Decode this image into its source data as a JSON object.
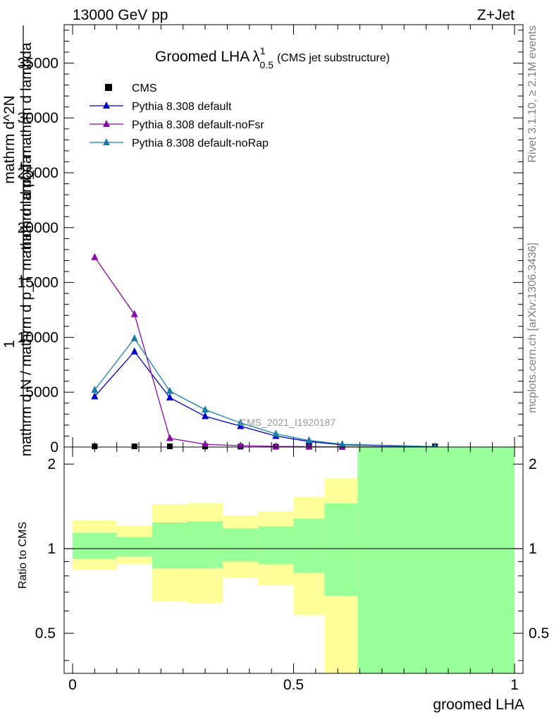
{
  "header": {
    "left": "13000 GeV pp",
    "right": "Z+Jet",
    "watermark": "CMS_2021_I1920187"
  },
  "side_labels": {
    "rivet": "Rivet 3.1.10, ≥ 2.1M events",
    "mcplots": "mcplots.cern.ch [arXiv:1306.3436]"
  },
  "colors": {
    "cms": "#000000",
    "default": "#0000cc",
    "noFsr": "#8a0aaa",
    "noRap": "#1a7fa8",
    "band_yellow": "#ffff99",
    "band_green": "#99ff99"
  },
  "chart_data": [
    {
      "type": "line",
      "title": "Groomed LHA",
      "title_symbol": "λ",
      "title_sup": "1",
      "title_sub": "0.5",
      "title_note": "(CMS jet substructure)",
      "ylabel_lines": [
        "1",
        "mathrm d N / mathrm d p_T mathrm d lambda",
        "mathrm d^2N",
        "mathrm d p_T mathrm d lambda"
      ],
      "xlim": [
        0,
        1
      ],
      "ylim": [
        0,
        38500
      ],
      "yticks": [
        5000,
        10000,
        15000,
        20000,
        25000,
        30000,
        35000
      ],
      "ytick_labels": [
        "5000",
        "10000",
        "15000",
        "20000",
        "25000",
        "30000",
        "35000"
      ],
      "legend": [
        "CMS",
        "Pythia 8.308 default",
        "Pythia 8.308 default-noFsr",
        "Pythia 8.308 default-noRap"
      ],
      "legend_position": "top-left",
      "series": [
        {
          "name": "CMS",
          "marker": "square",
          "x": [
            0.05,
            0.14,
            0.22,
            0.3,
            0.38,
            0.46,
            0.535,
            0.61,
            0.82
          ],
          "y": [
            60,
            60,
            60,
            50,
            40,
            30,
            20,
            10,
            60
          ]
        },
        {
          "name": "Pythia 8.308 default",
          "marker": "triangle",
          "x": [
            0.05,
            0.14,
            0.22,
            0.3,
            0.38,
            0.46,
            0.535,
            0.61,
            0.82
          ],
          "y": [
            4600,
            8700,
            4500,
            2800,
            1900,
            1000,
            500,
            200,
            30
          ]
        },
        {
          "name": "Pythia 8.308 default-noFsr",
          "marker": "triangle",
          "x": [
            0.05,
            0.14,
            0.22,
            0.3,
            0.38,
            0.46,
            0.535,
            0.61,
            0.82
          ],
          "y": [
            17300,
            12100,
            800,
            250,
            120,
            60,
            30,
            15,
            10
          ]
        },
        {
          "name": "Pythia 8.308 default-noRap",
          "marker": "triangle",
          "x": [
            0.05,
            0.14,
            0.22,
            0.3,
            0.38,
            0.46,
            0.535,
            0.61,
            0.82
          ],
          "y": [
            5200,
            9900,
            5100,
            3400,
            2200,
            1200,
            600,
            250,
            40
          ]
        }
      ]
    },
    {
      "type": "area",
      "ylabel": "Ratio to CMS",
      "xlabel": "groomed LHA",
      "xlim": [
        0,
        1
      ],
      "ylim": [
        0.36,
        2.3
      ],
      "log_y": true,
      "xticks": [
        0,
        0.5,
        1
      ],
      "xtick_labels": [
        "0",
        "0.5",
        "1"
      ],
      "yticks": [
        0.5,
        1,
        2
      ],
      "ytick_labels": [
        "0.5",
        "1",
        "2"
      ],
      "reference_line": 1,
      "bins": [
        {
          "x": [
            0.0,
            0.1
          ],
          "yellow": [
            0.84,
            1.26
          ],
          "green": [
            0.92,
            1.14
          ]
        },
        {
          "x": [
            0.1,
            0.18
          ],
          "yellow": [
            0.88,
            1.21
          ],
          "green": [
            0.94,
            1.1
          ]
        },
        {
          "x": [
            0.18,
            0.26
          ],
          "yellow": [
            0.65,
            1.44
          ],
          "green": [
            0.85,
            1.24
          ]
        },
        {
          "x": [
            0.26,
            0.34
          ],
          "yellow": [
            0.64,
            1.45
          ],
          "green": [
            0.85,
            1.25
          ]
        },
        {
          "x": [
            0.34,
            0.42
          ],
          "yellow": [
            0.79,
            1.31
          ],
          "green": [
            0.9,
            1.18
          ]
        },
        {
          "x": [
            0.42,
            0.5
          ],
          "yellow": [
            0.74,
            1.36
          ],
          "green": [
            0.88,
            1.2
          ]
        },
        {
          "x": [
            0.5,
            0.57
          ],
          "yellow": [
            0.58,
            1.53
          ],
          "green": [
            0.82,
            1.28
          ]
        },
        {
          "x": [
            0.57,
            0.645
          ],
          "yellow": [
            0.36,
            1.78
          ],
          "green": [
            0.68,
            1.45
          ]
        },
        {
          "x": [
            0.645,
            1.0
          ],
          "yellow": [
            0.36,
            2.3
          ],
          "green": [
            0.36,
            2.3
          ]
        }
      ]
    }
  ]
}
